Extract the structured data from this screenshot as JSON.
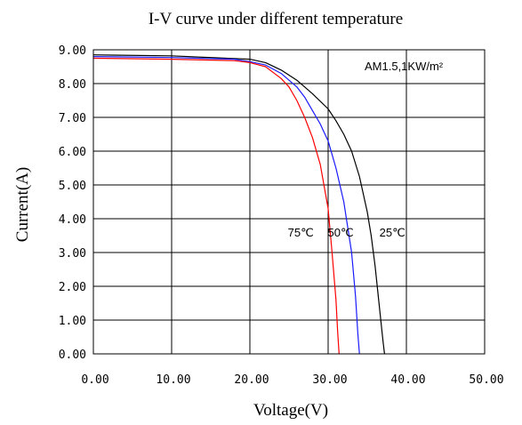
{
  "chart_data": {
    "type": "line",
    "title": "I-V curve under different temperature",
    "xlabel": "Voltage(V)",
    "ylabel": "Current(A)",
    "xlim": [
      0,
      50
    ],
    "ylim": [
      0,
      9
    ],
    "x_ticks": [
      "0.00",
      "10.00",
      "20.00",
      "30.00",
      "40.00",
      "50.00"
    ],
    "y_ticks": [
      "0.00",
      "1.00",
      "2.00",
      "3.00",
      "4.00",
      "5.00",
      "6.00",
      "7.00",
      "8.00",
      "9.00"
    ],
    "grid": true,
    "annotation": "AM1.5,1KW/m²",
    "series": [
      {
        "name": "25℃",
        "color": "#000000",
        "points": [
          [
            0,
            8.85
          ],
          [
            10,
            8.82
          ],
          [
            20,
            8.72
          ],
          [
            22,
            8.62
          ],
          [
            24,
            8.4
          ],
          [
            26,
            8.1
          ],
          [
            28,
            7.7
          ],
          [
            30,
            7.25
          ],
          [
            31,
            6.9
          ],
          [
            32,
            6.5
          ],
          [
            33,
            6.0
          ],
          [
            34,
            5.25
          ],
          [
            35,
            4.2
          ],
          [
            35.5,
            3.5
          ],
          [
            36,
            2.6
          ],
          [
            36.5,
            1.5
          ],
          [
            37,
            0.4
          ],
          [
            37.2,
            0
          ]
        ]
      },
      {
        "name": "50℃",
        "color": "#1a1aff",
        "points": [
          [
            0,
            8.8
          ],
          [
            10,
            8.77
          ],
          [
            18,
            8.72
          ],
          [
            20,
            8.65
          ],
          [
            22,
            8.55
          ],
          [
            24,
            8.3
          ],
          [
            26,
            7.9
          ],
          [
            27,
            7.6
          ],
          [
            28,
            7.2
          ],
          [
            29,
            6.8
          ],
          [
            30,
            6.3
          ],
          [
            31,
            5.5
          ],
          [
            32,
            4.5
          ],
          [
            33,
            3.0
          ],
          [
            33.5,
            1.7
          ],
          [
            33.8,
            0.6
          ],
          [
            34,
            0
          ]
        ]
      },
      {
        "name": "75℃",
        "color": "#ff0000",
        "points": [
          [
            0,
            8.75
          ],
          [
            10,
            8.72
          ],
          [
            18,
            8.68
          ],
          [
            20,
            8.62
          ],
          [
            22,
            8.5
          ],
          [
            24,
            8.15
          ],
          [
            25,
            7.9
          ],
          [
            26,
            7.5
          ],
          [
            27,
            7.0
          ],
          [
            28,
            6.4
          ],
          [
            29,
            5.6
          ],
          [
            30,
            4.3
          ],
          [
            30.5,
            3.0
          ],
          [
            31,
            1.6
          ],
          [
            31.2,
            0.7
          ],
          [
            31.4,
            0
          ]
        ]
      }
    ],
    "series_labels": [
      {
        "text": "75℃",
        "x": 26.5,
        "y": 3.47
      },
      {
        "text": "50℃",
        "x": 31.6,
        "y": 3.47
      },
      {
        "text": "25℃",
        "x": 38.2,
        "y": 3.47
      }
    ]
  }
}
